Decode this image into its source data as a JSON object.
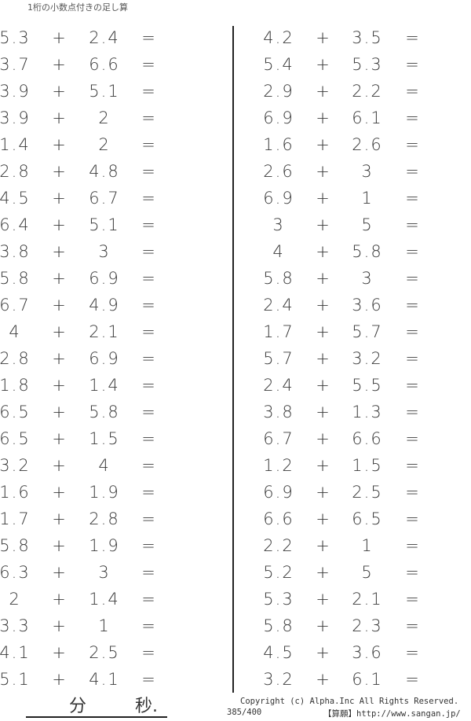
{
  "title": "1桁の小数点付きの足し算",
  "operator": "+",
  "equals": "=",
  "left_problems": [
    [
      "5.3",
      "2.4"
    ],
    [
      "3.7",
      "6.6"
    ],
    [
      "3.9",
      "5.1"
    ],
    [
      "3.9",
      "2"
    ],
    [
      "1.4",
      "2"
    ],
    [
      "2.8",
      "4.8"
    ],
    [
      "4.5",
      "6.7"
    ],
    [
      "6.4",
      "5.1"
    ],
    [
      "3.8",
      "3"
    ],
    [
      "5.8",
      "6.9"
    ],
    [
      "6.7",
      "4.9"
    ],
    [
      "4",
      "2.1"
    ],
    [
      "2.8",
      "6.9"
    ],
    [
      "1.8",
      "1.4"
    ],
    [
      "6.5",
      "5.8"
    ],
    [
      "6.5",
      "1.5"
    ],
    [
      "3.2",
      "4"
    ],
    [
      "1.6",
      "1.9"
    ],
    [
      "1.7",
      "2.8"
    ],
    [
      "5.8",
      "1.9"
    ],
    [
      "6.3",
      "3"
    ],
    [
      "2",
      "1.4"
    ],
    [
      "3.3",
      "1"
    ],
    [
      "4.1",
      "2.5"
    ],
    [
      "5.1",
      "4.1"
    ]
  ],
  "right_problems": [
    [
      "4.2",
      "3.5"
    ],
    [
      "5.4",
      "5.3"
    ],
    [
      "2.9",
      "2.2"
    ],
    [
      "6.9",
      "6.1"
    ],
    [
      "1.6",
      "2.6"
    ],
    [
      "2.6",
      "3"
    ],
    [
      "6.9",
      "1"
    ],
    [
      "3",
      "5"
    ],
    [
      "4",
      "5.8"
    ],
    [
      "5.8",
      "3"
    ],
    [
      "2.4",
      "3.6"
    ],
    [
      "1.7",
      "5.7"
    ],
    [
      "5.7",
      "3.2"
    ],
    [
      "2.4",
      "5.5"
    ],
    [
      "3.8",
      "1.3"
    ],
    [
      "6.7",
      "6.6"
    ],
    [
      "1.2",
      "1.5"
    ],
    [
      "6.9",
      "2.5"
    ],
    [
      "6.6",
      "6.5"
    ],
    [
      "2.2",
      "1"
    ],
    [
      "5.2",
      "5"
    ],
    [
      "5.3",
      "2.1"
    ],
    [
      "5.8",
      "2.3"
    ],
    [
      "4.5",
      "3.6"
    ],
    [
      "3.2",
      "6.1"
    ]
  ],
  "footer": {
    "minutes_label": "分",
    "seconds_label": "秒.",
    "copyright": "Copyright (c)  Alpha.Inc All Rights Reserved.",
    "page_number": "385/400",
    "site": "【算願】http://www.sangan.jp/"
  }
}
